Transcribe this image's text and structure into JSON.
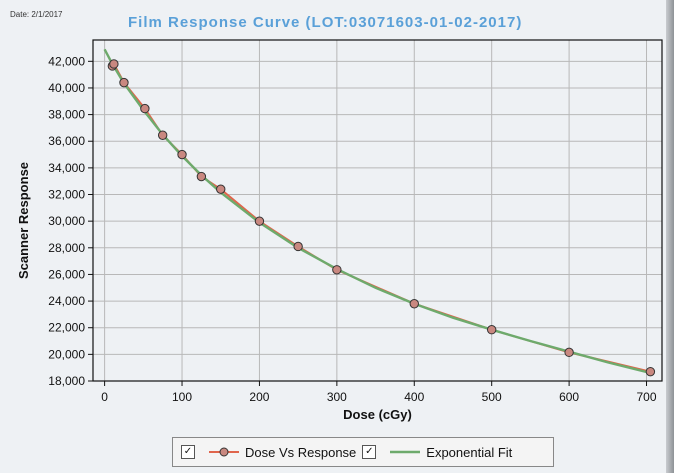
{
  "header": {
    "date": "Date: 2/1/2017",
    "title": "Film Response Curve (LOT:03071603-01-02-2017)"
  },
  "colors": {
    "series_line": "#e0654c",
    "marker_fill": "#c98880",
    "fit_line": "#6eaa6c",
    "grid": "#b8b8b8",
    "title": "#5aa0d8"
  },
  "chart_data": {
    "type": "scatter",
    "title": "Film Response Curve (LOT:03071603-01-02-2017)",
    "xlabel": "Dose (cGy)",
    "ylabel": "Scanner Response",
    "xlim": [
      -15,
      720
    ],
    "ylim": [
      18000,
      43600
    ],
    "x_ticks": [
      0,
      100,
      200,
      300,
      400,
      500,
      600,
      700
    ],
    "y_ticks": [
      18000,
      20000,
      22000,
      24000,
      26000,
      28000,
      30000,
      32000,
      34000,
      36000,
      38000,
      40000,
      42000
    ],
    "y_tick_labels": [
      "18,000",
      "20,000",
      "22,000",
      "24,000",
      "26,000",
      "28,000",
      "30,000",
      "32,000",
      "34,000",
      "36,000",
      "38,000",
      "40,000",
      "42,000"
    ],
    "grid": true,
    "legend_position": "bottom",
    "series": [
      {
        "name": "Dose Vs Response",
        "x": [
          10,
          12,
          25,
          52,
          75,
          100,
          125,
          150,
          200,
          250,
          300,
          400,
          500,
          600,
          705
        ],
        "y": [
          41650,
          41800,
          40400,
          38450,
          36450,
          35000,
          33350,
          32400,
          30000,
          28100,
          26350,
          23800,
          21850,
          20150,
          18700
        ]
      },
      {
        "name": "Exponential Fit",
        "x": [
          0,
          10,
          25,
          50,
          75,
          100,
          125,
          150,
          200,
          250,
          300,
          350,
          400,
          450,
          500,
          550,
          600,
          650,
          705
        ],
        "y": [
          42900,
          41800,
          40350,
          38350,
          36500,
          34900,
          33450,
          32150,
          29900,
          28000,
          26400,
          25000,
          23800,
          22750,
          21850,
          21000,
          20200,
          19400,
          18600
        ]
      }
    ]
  },
  "legend": {
    "series1_label": "Dose Vs Response",
    "series2_label": "Exponential Fit",
    "checkbox_mark": "✓"
  }
}
